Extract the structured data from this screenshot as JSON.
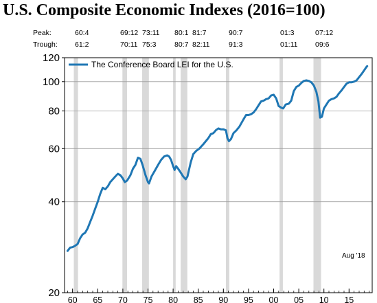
{
  "title": "U.S. Composite Economic Indexes (2016=100)",
  "cycle_table": {
    "peak_label": "Peak:",
    "trough_label": "Trough:",
    "peaks": [
      "60:4",
      "69:12",
      "73:11",
      "80:1",
      "81:7",
      "90:7",
      "01:3",
      "07:12"
    ],
    "troughs": [
      "61:2",
      "70:11",
      "75:3",
      "80:7",
      "82:11",
      "91:3",
      "01:11",
      "09:6"
    ]
  },
  "chart_data": {
    "type": "line",
    "title": "U.S. Composite Economic Indexes (2016=100)",
    "yscale": "log",
    "ylim": [
      20,
      120
    ],
    "xlim": [
      1958.4,
      2019.6
    ],
    "y_ticks": [
      20,
      40,
      60,
      80,
      100,
      120
    ],
    "x_ticks": [
      1960,
      1965,
      1970,
      1975,
      1980,
      1985,
      1990,
      1995,
      2000,
      2005,
      2010,
      2015
    ],
    "x_tick_labels": [
      "60",
      "65",
      "70",
      "75",
      "80",
      "85",
      "90",
      "95",
      "00",
      "05",
      "10",
      "15"
    ],
    "grid": "horizontal",
    "legend_position": "top-left",
    "annotation": "Aug '18",
    "line_color": "#1f77b4",
    "recession_color": "#d9d9d9",
    "recessions": [
      [
        1960.25,
        1961.08
      ],
      [
        1969.92,
        1970.83
      ],
      [
        1973.83,
        1975.17
      ],
      [
        1980.0,
        1980.5
      ],
      [
        1981.5,
        1982.83
      ],
      [
        1990.5,
        1991.17
      ],
      [
        2001.17,
        2001.83
      ],
      [
        2007.92,
        2009.42
      ]
    ],
    "series": [
      {
        "name": "The Conference Board LEI for the U.S.",
        "x": [
          1959.0,
          1959.5,
          1960.0,
          1960.5,
          1961.0,
          1961.5,
          1962.0,
          1962.5,
          1963.0,
          1963.5,
          1964.0,
          1964.5,
          1965.0,
          1965.5,
          1966.0,
          1966.5,
          1967.0,
          1967.5,
          1968.0,
          1968.5,
          1969.0,
          1969.5,
          1969.92,
          1970.4,
          1970.83,
          1971.5,
          1972.0,
          1972.5,
          1973.0,
          1973.5,
          1973.92,
          1974.5,
          1975.0,
          1975.2,
          1975.7,
          1976.3,
          1977.0,
          1977.6,
          1978.2,
          1978.8,
          1979.2,
          1979.6,
          1980.0,
          1980.3,
          1980.6,
          1981.0,
          1981.5,
          1982.0,
          1982.5,
          1982.85,
          1983.5,
          1984.0,
          1984.6,
          1985.2,
          1986.0,
          1987.0,
          1987.5,
          1988.0,
          1988.5,
          1989.0,
          1989.5,
          1990.0,
          1990.5,
          1990.8,
          1991.1,
          1991.5,
          1992.0,
          1992.6,
          1993.2,
          1994.0,
          1994.5,
          1995.0,
          1995.5,
          1996.0,
          1996.5,
          1997.0,
          1997.5,
          1998.0,
          1998.5,
          1999.0,
          1999.5,
          2000.0,
          2000.5,
          2001.0,
          2001.5,
          2001.9,
          2002.4,
          2003.0,
          2003.5,
          2004.0,
          2004.5,
          2005.0,
          2005.5,
          2006.0,
          2006.5,
          2007.0,
          2007.5,
          2008.0,
          2008.5,
          2008.9,
          2009.25,
          2009.6,
          2010.0,
          2010.5,
          2011.0,
          2011.5,
          2012.0,
          2012.5,
          2013.0,
          2013.5,
          2014.0,
          2014.5,
          2015.0,
          2015.5,
          2016.0,
          2016.5,
          2017.0,
          2017.5,
          2018.0,
          2018.4,
          2018.6
        ],
        "values": [
          27.5,
          28.2,
          28.3,
          28.6,
          29.0,
          30.3,
          31.2,
          31.6,
          32.7,
          34.3,
          36.0,
          38.0,
          40.0,
          42.5,
          44.5,
          44.0,
          45.0,
          46.5,
          47.5,
          48.5,
          49.5,
          49.0,
          48.0,
          46.5,
          47.0,
          49.0,
          51.5,
          53.0,
          56.0,
          55.5,
          53.0,
          49.0,
          46.5,
          46.0,
          48.5,
          50.5,
          53.0,
          55.0,
          56.5,
          57.0,
          56.5,
          55.0,
          52.5,
          51.0,
          52.5,
          51.5,
          50.0,
          48.5,
          47.5,
          48.5,
          54.0,
          57.5,
          59.0,
          60.0,
          62.0,
          65.0,
          67.0,
          67.5,
          69.0,
          70.0,
          69.5,
          69.5,
          69.0,
          65.0,
          63.5,
          64.5,
          67.5,
          69.0,
          71.0,
          75.0,
          77.5,
          77.5,
          78.0,
          79.0,
          81.0,
          83.5,
          86.0,
          86.5,
          87.5,
          88.0,
          90.0,
          90.5,
          88.0,
          83.0,
          82.0,
          81.5,
          84.0,
          84.5,
          86.5,
          93.0,
          96.0,
          97.0,
          99.0,
          100.5,
          101.0,
          100.5,
          99.5,
          97.0,
          92.5,
          86.0,
          76.0,
          76.5,
          81.5,
          84.0,
          86.5,
          87.5,
          88.0,
          89.0,
          91.5,
          93.5,
          96.0,
          98.5,
          99.5,
          99.5,
          100.0,
          101.0,
          103.5,
          106.0,
          109.0,
          111.5,
          112.5
        ]
      }
    ]
  }
}
